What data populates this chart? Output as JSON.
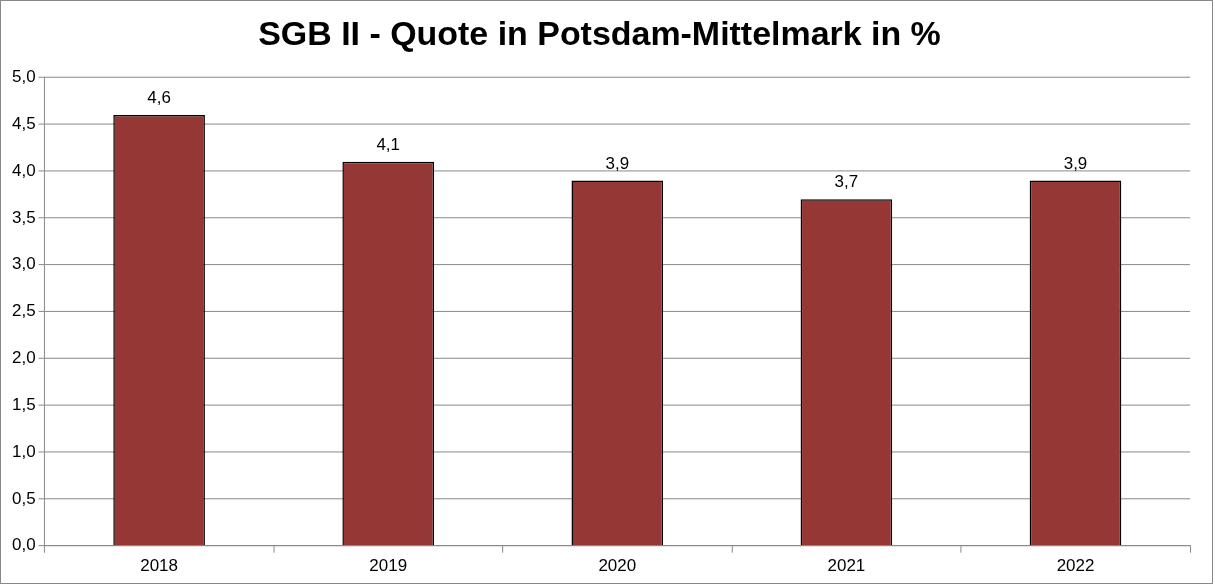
{
  "chart_data": {
    "type": "bar",
    "title": "SGB II - Quote in Potsdam-Mittelmark in %",
    "categories": [
      "2018",
      "2019",
      "2020",
      "2021",
      "2022"
    ],
    "values": [
      4.6,
      4.1,
      3.9,
      3.7,
      3.9
    ],
    "color": "#953735",
    "value_labels": [
      "4,6",
      "4,1",
      "3,9",
      "3,7",
      "3,9"
    ],
    "ylim": [
      0,
      5
    ],
    "yticks": [
      {
        "value": 0,
        "label": "0,0"
      },
      {
        "value": 0.5,
        "label": "0,5"
      },
      {
        "value": 1,
        "label": "1,0"
      },
      {
        "value": 1.5,
        "label": "1,5"
      },
      {
        "value": 2,
        "label": "2,0"
      },
      {
        "value": 2.5,
        "label": "2,5"
      },
      {
        "value": 3,
        "label": "3,0"
      },
      {
        "value": 3.5,
        "label": "3,5"
      },
      {
        "value": 4,
        "label": "4,0"
      },
      {
        "value": 4.5,
        "label": "4,5"
      },
      {
        "value": 5,
        "label": "5,0"
      }
    ],
    "grid": "y",
    "legend": false
  }
}
